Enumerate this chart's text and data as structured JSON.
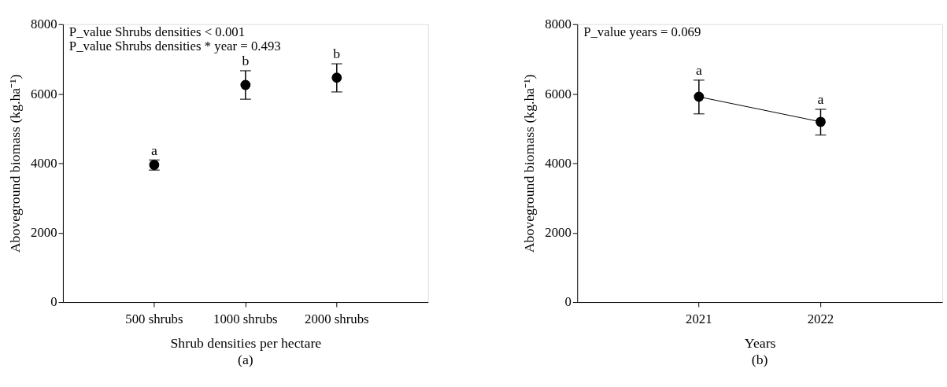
{
  "chart_data": [
    {
      "type": "scatter",
      "title": "(a)",
      "xlabel": "Shrub densities per hectare",
      "ylabel": "Aboveground biomass (kg.ha⁻¹)",
      "categories": [
        "500 shrubs",
        "1000 shrubs",
        "2000 shrubs"
      ],
      "series": [
        {
          "color": "#000000",
          "values": [
            3950,
            6250,
            6460
          ],
          "errors": [
            [
              3800,
              4090
            ],
            [
              5840,
              6660
            ],
            [
              6050,
              6860
            ]
          ]
        }
      ],
      "ylim": [
        0,
        8000
      ],
      "yticks": [
        0,
        2000,
        4000,
        6000,
        8000
      ],
      "grid": false,
      "marker": "circle",
      "annotations": [
        "P_value Shrubs densities < 0.001",
        "P_value Shrubs densities * year = 0.493",
        {
          "text": "a",
          "x": "500 shrubs",
          "y": 4090
        },
        {
          "text": "b",
          "x": "1000 shrubs",
          "y": 6660
        },
        {
          "text": "b",
          "x": "2000 shrubs",
          "y": 6860
        }
      ]
    },
    {
      "type": "line",
      "title": "(b)",
      "xlabel": "Years",
      "ylabel": "Aboveground biomass (kg.ha⁻¹)",
      "categories": [
        "2021",
        "2022"
      ],
      "series": [
        {
          "color": "#000000",
          "values": [
            5910,
            5190
          ],
          "errors": [
            [
              5420,
              6390
            ],
            [
              4810,
              5550
            ]
          ]
        }
      ],
      "ylim": [
        0,
        8000
      ],
      "yticks": [
        0,
        2000,
        4000,
        6000,
        8000
      ],
      "grid": false,
      "marker": "circle",
      "line_style": "solid",
      "annotations": [
        "P_value years = 0.069",
        {
          "text": "a",
          "x": "2021",
          "y": 6390
        },
        {
          "text": "a",
          "x": "2022",
          "y": 5550
        }
      ]
    }
  ]
}
